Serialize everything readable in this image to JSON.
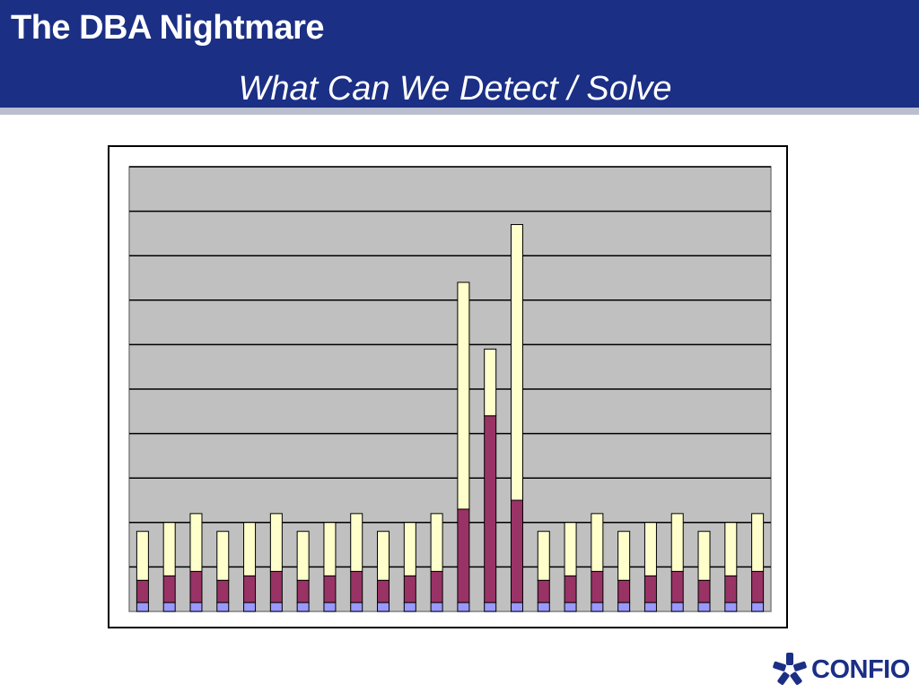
{
  "slide": {
    "title": "The DBA Nightmare",
    "subtitle": "What Can We Detect / Solve"
  },
  "colors": {
    "header_bg": "#1b2f85",
    "plot_bg": "#c0c0c0",
    "series_base": "#9999ff",
    "series_mid": "#993366",
    "series_top": "#ffffcc"
  },
  "chart_data": {
    "type": "bar",
    "stacked": true,
    "title": "",
    "xlabel": "",
    "ylabel": "",
    "ylim": [
      0,
      10
    ],
    "grid": true,
    "categories": [
      "",
      "",
      "",
      "",
      "",
      "",
      "",
      "",
      "",
      "",
      "",
      "",
      "",
      "",
      "",
      "",
      "",
      "",
      "",
      "",
      "",
      "",
      "",
      ""
    ],
    "series": [
      {
        "color": "#9999ff",
        "values": [
          0.2,
          0.2,
          0.2,
          0.2,
          0.2,
          0.2,
          0.2,
          0.2,
          0.2,
          0.2,
          0.2,
          0.2,
          0.2,
          0.2,
          0.2,
          0.2,
          0.2,
          0.2,
          0.2,
          0.2,
          0.2,
          0.2,
          0.2,
          0.2
        ]
      },
      {
        "color": "#993366",
        "values": [
          0.5,
          0.6,
          0.7,
          0.5,
          0.6,
          0.7,
          0.5,
          0.6,
          0.7,
          0.5,
          0.6,
          0.7,
          2.1,
          4.2,
          2.3,
          0.5,
          0.6,
          0.7,
          0.5,
          0.6,
          0.7,
          0.5,
          0.6,
          0.7
        ]
      },
      {
        "color": "#ffffcc",
        "values": [
          1.1,
          1.2,
          1.3,
          1.1,
          1.2,
          1.3,
          1.1,
          1.2,
          1.3,
          1.1,
          1.2,
          1.3,
          5.1,
          1.5,
          6.2,
          1.1,
          1.2,
          1.3,
          1.1,
          1.2,
          1.3,
          1.1,
          1.2,
          1.3
        ]
      }
    ]
  },
  "logo": {
    "text": "CONFIO",
    "icon": "confio-star-icon"
  }
}
